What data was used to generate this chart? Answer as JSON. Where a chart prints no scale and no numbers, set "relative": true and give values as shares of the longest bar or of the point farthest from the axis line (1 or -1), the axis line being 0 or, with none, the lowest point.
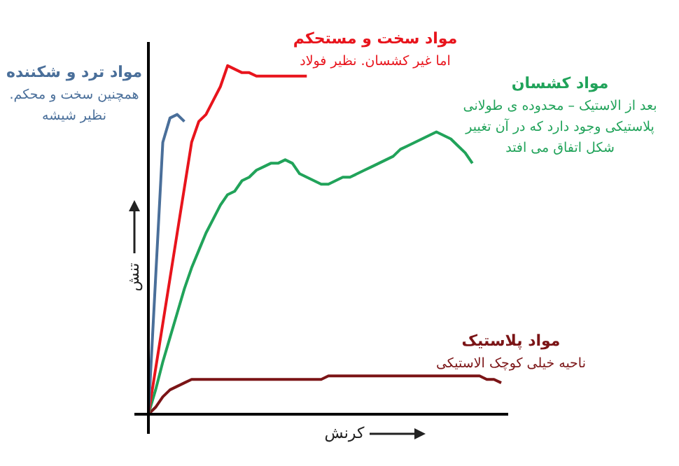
{
  "chart_data": {
    "type": "line",
    "relative": true,
    "xlabel": "کرنش",
    "ylabel": "تنش",
    "categories": [
      null,
      null,
      null,
      null,
      null,
      null,
      null,
      null,
      null,
      null,
      null,
      null,
      null,
      null,
      null,
      null,
      null,
      null,
      null,
      null,
      null,
      null,
      null,
      null,
      null,
      null,
      null,
      null,
      null,
      null,
      null,
      null,
      null,
      null,
      null,
      null,
      null,
      null,
      null,
      null,
      null,
      null,
      null,
      null,
      null,
      null,
      null,
      null,
      null,
      null
    ],
    "series": [
      {
        "name": "مواد ترد و شکننده",
        "color": "#4a6f9a",
        "values": [
          0,
          0.39,
          0.78,
          0.85,
          0.86,
          0.84,
          null,
          null,
          null,
          null,
          null,
          null,
          null,
          null,
          null,
          null,
          null,
          null,
          null,
          null,
          null,
          null,
          null,
          null,
          null,
          null,
          null,
          null,
          null,
          null,
          null,
          null,
          null,
          null,
          null,
          null,
          null,
          null,
          null,
          null,
          null,
          null,
          null,
          null,
          null,
          null,
          null,
          null,
          null,
          null
        ]
      },
      {
        "name": "مواد سخت و مستحکم",
        "color": "#e8141c",
        "values": [
          0,
          0.13,
          0.26,
          0.39,
          0.52,
          0.65,
          0.78,
          0.84,
          0.86,
          0.9,
          0.94,
          1,
          0.99,
          0.98,
          0.98,
          0.97,
          0.97,
          0.97,
          0.97,
          0.97,
          0.97,
          0.97,
          0.97,
          null,
          null,
          null,
          null,
          null,
          null,
          null,
          null,
          null,
          null,
          null,
          null,
          null,
          null,
          null,
          null,
          null,
          null,
          null,
          null,
          null,
          null,
          null,
          null,
          null,
          null,
          null
        ]
      },
      {
        "name": "مواد کشسان",
        "color": "#21a35a",
        "values": [
          0,
          0.07,
          0.15,
          0.22,
          0.29,
          0.36,
          0.42,
          0.47,
          0.52,
          0.56,
          0.6,
          0.63,
          0.64,
          0.67,
          0.68,
          0.7,
          0.71,
          0.72,
          0.72,
          0.73,
          0.72,
          0.69,
          0.68,
          0.67,
          0.66,
          0.66,
          0.67,
          0.68,
          0.68,
          0.69,
          0.7,
          0.71,
          0.72,
          0.73,
          0.74,
          0.76,
          0.77,
          0.78,
          0.79,
          0.8,
          0.81,
          0.8,
          0.79,
          0.77,
          0.75,
          0.72,
          null,
          null,
          null,
          null
        ]
      },
      {
        "name": "مواد پلاستیک",
        "color": "#7b1416",
        "values": [
          0,
          0.02,
          0.05,
          0.07,
          0.08,
          0.09,
          0.1,
          0.1,
          0.1,
          0.1,
          0.1,
          0.1,
          0.1,
          0.1,
          0.1,
          0.1,
          0.1,
          0.1,
          0.1,
          0.1,
          0.1,
          0.1,
          0.1,
          0.1,
          0.1,
          0.11,
          0.11,
          0.11,
          0.11,
          0.11,
          0.11,
          0.11,
          0.11,
          0.11,
          0.11,
          0.11,
          0.11,
          0.11,
          0.11,
          0.11,
          0.11,
          0.11,
          0.11,
          0.11,
          0.11,
          0.11,
          0.11,
          0.1,
          0.1,
          0.09
        ]
      }
    ],
    "annotations": [
      "همچنین سخت و محکم.\nنظیر شیشه",
      "اما غیر کشسان. نظیر فولاد",
      "بعد از الاستیک – محدوده ی طولانی\nپلاستیکی وجود دارد که در آن تغییر\nشکل اتفاق می افتد",
      "ناحیه خیلی کوچک الاستیکی"
    ]
  }
}
